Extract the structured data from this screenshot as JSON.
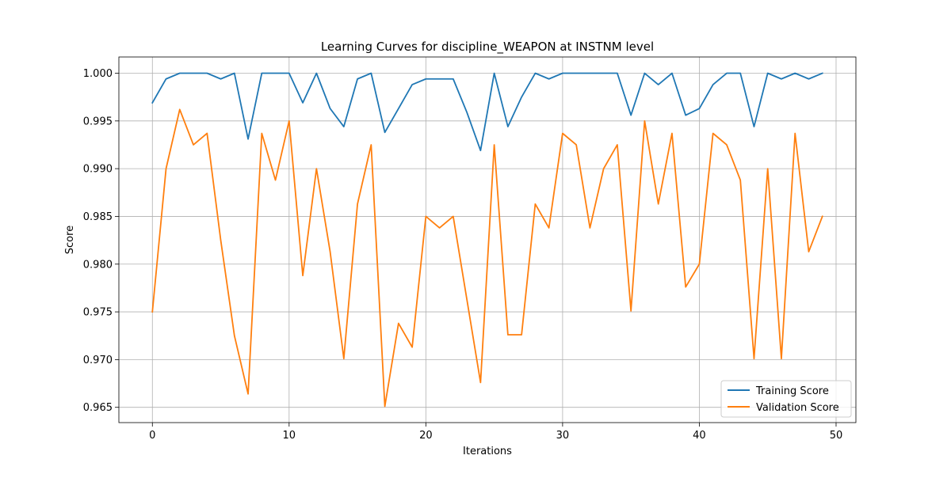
{
  "chart_data": {
    "type": "line",
    "title": "Learning Curves for discipline_WEAPON at INSTNM level",
    "xlabel": "Iterations",
    "ylabel": "Score",
    "xlim": [
      -2.45,
      51.45
    ],
    "ylim": [
      0.9634,
      1.0017
    ],
    "xticks": [
      0,
      10,
      20,
      30,
      40,
      50
    ],
    "xtick_labels": [
      "0",
      "10",
      "20",
      "30",
      "40",
      "50"
    ],
    "yticks": [
      0.965,
      0.97,
      0.975,
      0.98,
      0.985,
      0.99,
      0.995,
      1.0
    ],
    "ytick_labels": [
      "0.965",
      "0.970",
      "0.975",
      "0.980",
      "0.985",
      "0.990",
      "0.995",
      "1.000"
    ],
    "grid": true,
    "legend_position": "lower-right",
    "x": [
      0,
      1,
      2,
      3,
      4,
      5,
      6,
      7,
      8,
      9,
      10,
      11,
      12,
      13,
      14,
      15,
      16,
      17,
      18,
      19,
      20,
      21,
      22,
      23,
      24,
      25,
      26,
      27,
      28,
      29,
      30,
      31,
      32,
      33,
      34,
      35,
      36,
      37,
      38,
      39,
      40,
      41,
      42,
      43,
      44,
      45,
      46,
      47,
      48,
      49
    ],
    "series": [
      {
        "name": "Training Score",
        "color": "#1f77b4",
        "values": [
          0.9969,
          0.9994,
          1.0,
          1.0,
          1.0,
          0.9994,
          1.0,
          0.9931,
          1.0,
          1.0,
          1.0,
          0.9969,
          1.0,
          0.9963,
          0.9944,
          0.9994,
          1.0,
          0.9938,
          0.9963,
          0.9988,
          0.9994,
          0.9994,
          0.9994,
          0.9959,
          0.9919,
          1.0,
          0.9944,
          0.9975,
          1.0,
          0.9994,
          1.0,
          1.0,
          1.0,
          1.0,
          1.0,
          0.9956,
          1.0,
          0.9988,
          1.0,
          0.9956,
          0.9963,
          0.9988,
          1.0,
          1.0,
          0.9944,
          1.0,
          0.9994,
          1.0,
          0.9994,
          1.0
        ]
      },
      {
        "name": "Validation Score",
        "color": "#ff7f0e",
        "values": [
          0.975,
          0.99,
          0.9962,
          0.9925,
          0.9937,
          0.9825,
          0.9725,
          0.9664,
          0.9937,
          0.9888,
          0.995,
          0.9788,
          0.99,
          0.9813,
          0.9701,
          0.9863,
          0.9925,
          0.9651,
          0.9738,
          0.9713,
          0.985,
          0.9838,
          0.985,
          0.9763,
          0.9676,
          0.9925,
          0.9726,
          0.9726,
          0.9863,
          0.9838,
          0.9937,
          0.9925,
          0.9838,
          0.99,
          0.9925,
          0.9751,
          0.995,
          0.9863,
          0.9937,
          0.9776,
          0.98,
          0.9937,
          0.9925,
          0.9888,
          0.9701,
          0.99,
          0.9701,
          0.9937,
          0.9813,
          0.985
        ]
      }
    ]
  }
}
